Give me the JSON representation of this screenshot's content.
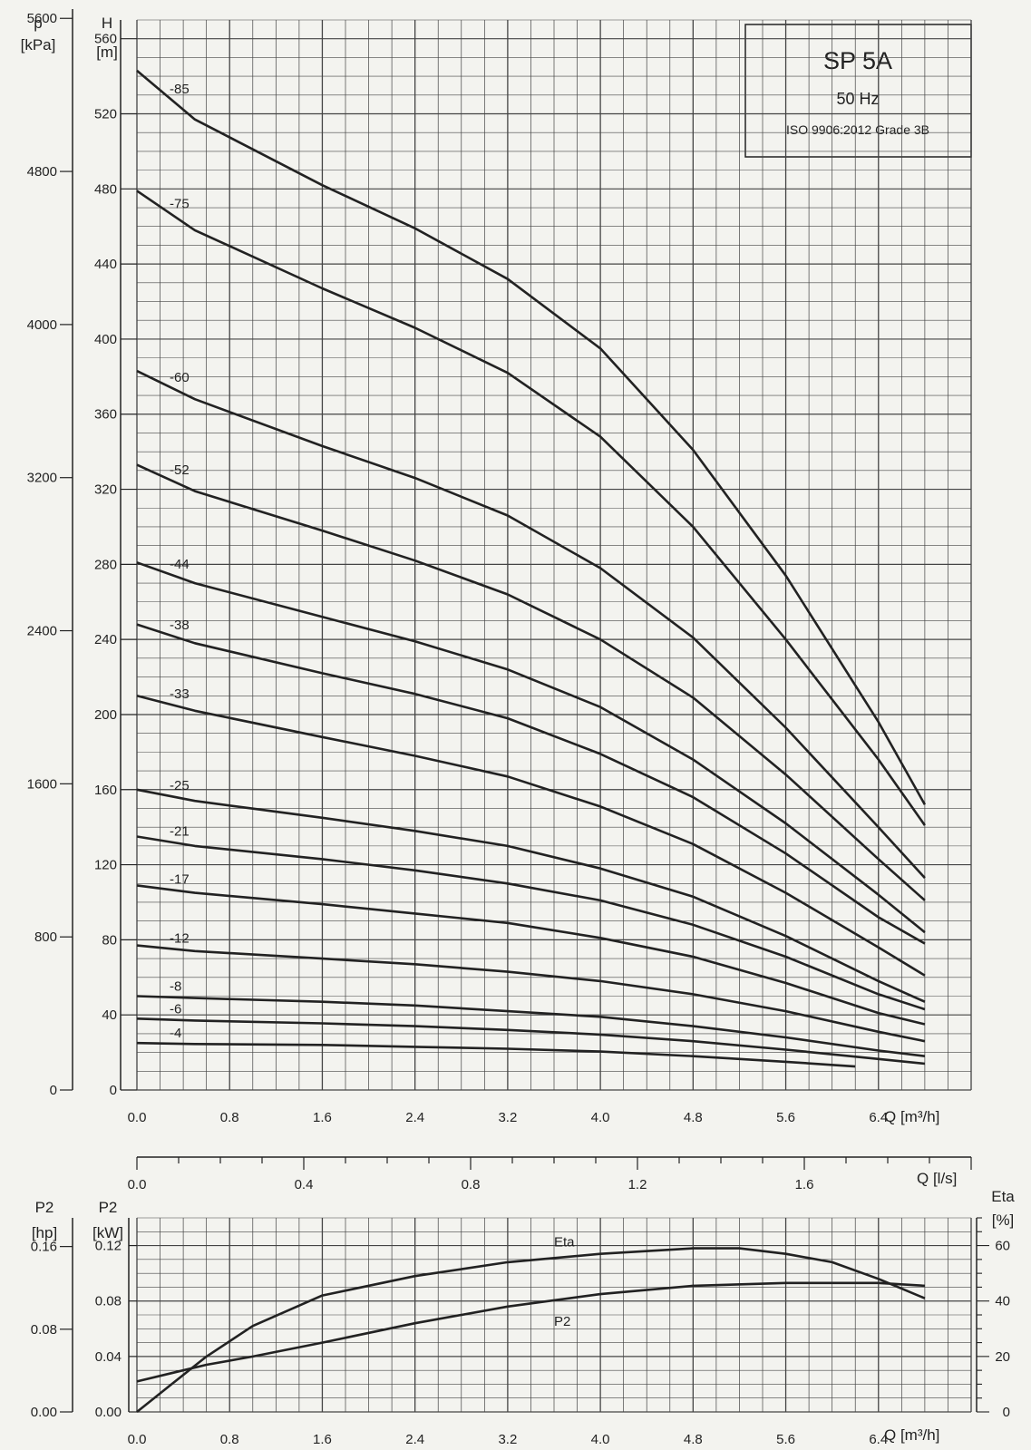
{
  "title_box": {
    "model": "SP 5A",
    "frequency": "50 Hz",
    "standard": "ISO 9906:2012 Grade 3B"
  },
  "chart_data": [
    {
      "id": "head",
      "type": "line",
      "x_label": "Q [m³/h]",
      "y_left_label": "H",
      "y_left_unit": "[m]",
      "y_left_ticks": [
        "0",
        "40",
        "80",
        "120",
        "160",
        "200",
        "240",
        "280",
        "320",
        "360",
        "400",
        "440",
        "480",
        "520",
        "560"
      ],
      "y_outer_label": "p",
      "y_outer_unit": "[kPa]",
      "y_outer_ticks": [
        "0",
        "800",
        "1600",
        "2400",
        "3200",
        "4000",
        "4800",
        "5600"
      ],
      "x_ticks": [
        "0.0",
        "0.8",
        "1.6",
        "2.4",
        "3.2",
        "4.0",
        "4.8",
        "5.6",
        "6.4"
      ],
      "xlim": [
        0,
        7.2
      ],
      "ylim": [
        0,
        570
      ],
      "grid": true,
      "series": [
        {
          "name": "-85",
          "x": [
            0,
            0.5,
            1.6,
            2.4,
            3.2,
            4.0,
            4.8,
            5.6,
            6.4,
            6.8
          ],
          "y": [
            543,
            517,
            482,
            459,
            432,
            395,
            341,
            274,
            196,
            152
          ]
        },
        {
          "name": "-75",
          "x": [
            0,
            0.5,
            1.6,
            2.4,
            3.2,
            4.0,
            4.8,
            5.6,
            6.4,
            6.8
          ],
          "y": [
            479,
            458,
            427,
            406,
            382,
            348,
            300,
            240,
            176,
            141
          ]
        },
        {
          "name": "-60",
          "x": [
            0,
            0.5,
            1.6,
            2.4,
            3.2,
            4.0,
            4.8,
            5.6,
            6.4,
            6.8
          ],
          "y": [
            383,
            368,
            343,
            326,
            306,
            278,
            241,
            193,
            140,
            113
          ]
        },
        {
          "name": "-52",
          "x": [
            0,
            0.5,
            1.6,
            2.4,
            3.2,
            4.0,
            4.8,
            5.6,
            6.4,
            6.8
          ],
          "y": [
            333,
            319,
            298,
            282,
            264,
            240,
            209,
            168,
            123,
            101
          ]
        },
        {
          "name": "-44",
          "x": [
            0,
            0.5,
            1.6,
            2.4,
            3.2,
            4.0,
            4.8,
            5.6,
            6.4,
            6.8
          ],
          "y": [
            281,
            270,
            252,
            239,
            224,
            204,
            176,
            142,
            104,
            84
          ]
        },
        {
          "name": "-38",
          "x": [
            0,
            0.5,
            1.6,
            2.4,
            3.2,
            4.0,
            4.8,
            5.6,
            6.4,
            6.8
          ],
          "y": [
            248,
            238,
            222,
            211,
            198,
            179,
            156,
            126,
            92,
            78
          ]
        },
        {
          "name": "-33",
          "x": [
            0,
            0.5,
            1.6,
            2.4,
            3.2,
            4.0,
            4.8,
            5.6,
            6.4,
            6.8
          ],
          "y": [
            210,
            202,
            188,
            178,
            167,
            151,
            131,
            105,
            76,
            61
          ]
        },
        {
          "name": "-25",
          "x": [
            0,
            0.5,
            1.6,
            2.4,
            3.2,
            4.0,
            4.8,
            5.6,
            6.4,
            6.8
          ],
          "y": [
            160,
            154,
            145,
            138,
            130,
            118,
            103,
            82,
            58,
            47
          ]
        },
        {
          "name": "-21",
          "x": [
            0,
            0.5,
            1.6,
            2.4,
            3.2,
            4.0,
            4.8,
            5.6,
            6.4,
            6.8
          ],
          "y": [
            135,
            130,
            123,
            117,
            110,
            101,
            88,
            71,
            51,
            43
          ]
        },
        {
          "name": "-17",
          "x": [
            0,
            0.5,
            1.6,
            2.4,
            3.2,
            4.0,
            4.8,
            5.6,
            6.4,
            6.8
          ],
          "y": [
            109,
            105,
            99,
            94,
            89,
            81,
            71,
            57,
            41,
            35
          ]
        },
        {
          "name": "-12",
          "x": [
            0,
            0.5,
            1.6,
            2.4,
            3.2,
            4.0,
            4.8,
            5.6,
            6.4,
            6.8
          ],
          "y": [
            77,
            74,
            70,
            67,
            63,
            58,
            51,
            42,
            31,
            26
          ]
        },
        {
          "name": "-8",
          "x": [
            0,
            0.5,
            1.6,
            2.4,
            3.2,
            4.0,
            4.8,
            5.6,
            6.4,
            6.8
          ],
          "y": [
            50,
            49,
            47,
            45,
            42,
            39,
            34,
            28,
            21,
            18
          ]
        },
        {
          "name": "-6",
          "x": [
            0,
            0.5,
            1.6,
            2.4,
            3.2,
            4.0,
            4.8,
            5.6,
            6.4,
            6.8
          ],
          "y": [
            38,
            37,
            35.5,
            34,
            32,
            29.5,
            26,
            21.5,
            16.5,
            14
          ]
        },
        {
          "name": "-4",
          "x": [
            0,
            0.5,
            1.6,
            2.4,
            3.2,
            4.0,
            4.8,
            5.6,
            6.2
          ],
          "y": [
            25,
            24.5,
            24,
            23,
            22,
            20.5,
            18,
            15,
            12.5
          ]
        }
      ]
    },
    {
      "id": "flow_ls",
      "type": "axis",
      "x_label": "Q [l/s]",
      "x_ticks": [
        "0.0",
        "0.4",
        "0.8",
        "1.2",
        "1.6"
      ],
      "xlim": [
        0,
        2.0
      ]
    },
    {
      "id": "power_efficiency",
      "type": "line",
      "x_label": "Q [m³/h]",
      "x_ticks": [
        "0.0",
        "0.8",
        "1.6",
        "2.4",
        "3.2",
        "4.0",
        "4.8",
        "5.6",
        "6.4"
      ],
      "xlim": [
        0,
        7.2
      ],
      "y_left_label": "P2",
      "y_left_unit": "[kW]",
      "y_left_ticks": [
        "0.00",
        "0.04",
        "0.08",
        "0.12"
      ],
      "ylim_left": [
        0,
        0.14
      ],
      "y_outer_label": "P2",
      "y_outer_unit": "[hp]",
      "y_outer_ticks": [
        "0.00",
        "0.08",
        "0.16"
      ],
      "y_right_label": "Eta",
      "y_right_unit": "[%]",
      "y_right_ticks": [
        "0",
        "20",
        "40",
        "60"
      ],
      "ylim_right": [
        0,
        70
      ],
      "grid": true,
      "series": [
        {
          "name": "Eta",
          "axis": "right",
          "x": [
            0,
            0.3,
            0.6,
            1.0,
            1.6,
            2.4,
            3.2,
            4.0,
            4.8,
            5.2,
            5.6,
            6.0,
            6.4,
            6.8
          ],
          "y": [
            0,
            10,
            20,
            31,
            42,
            49,
            54,
            57,
            59,
            59,
            57,
            54,
            48,
            41
          ]
        },
        {
          "name": "P2",
          "axis": "left",
          "x": [
            0,
            0.3,
            0.6,
            1.0,
            1.6,
            2.4,
            3.2,
            4.0,
            4.8,
            5.6,
            6.4,
            6.8
          ],
          "y": [
            0.022,
            0.028,
            0.034,
            0.04,
            0.05,
            0.064,
            0.076,
            0.085,
            0.091,
            0.093,
            0.093,
            0.091
          ]
        }
      ]
    }
  ]
}
